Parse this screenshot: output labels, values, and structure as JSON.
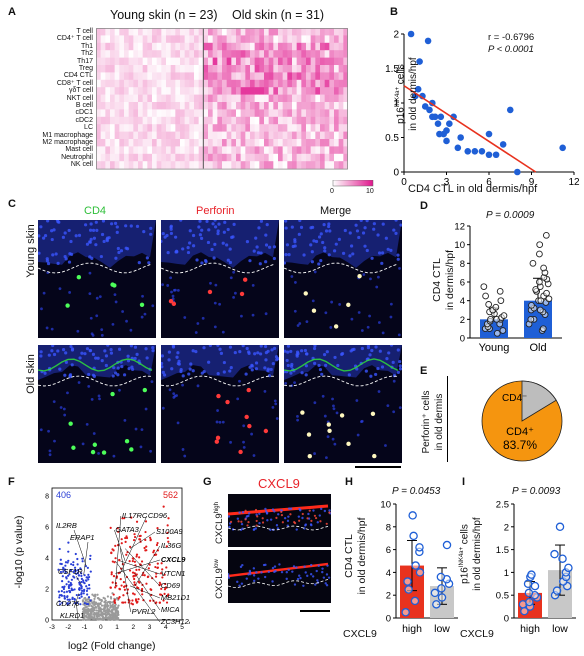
{
  "panels": {
    "A": "A",
    "B": "B",
    "C": "C",
    "D": "D",
    "E": "E",
    "F": "F",
    "G": "G",
    "H": "H",
    "I": "I"
  },
  "panel_a": {
    "young_title": "Young skin (n = 23)",
    "old_title": "Old skin (n = 31)",
    "rows": [
      "T cell",
      "CD4⁺ T cell",
      "Th1",
      "Th2",
      "Th17",
      "Treg",
      "CD4 CTL",
      "CD8⁺ T cell",
      "γδT cell",
      "NKT cell",
      "B cell",
      "cDC1",
      "cDC2",
      "LC",
      "M1 macrophage",
      "M2 macrophage",
      "Mast cell",
      "Neutrophil",
      "NK cell"
    ],
    "scale_min": "0",
    "scale_max": "10",
    "colors": {
      "low": "#ffffff",
      "high": "#e0158c"
    }
  },
  "panel_b": {
    "ylabel_prefix": "p16",
    "ylabel_sup": "INK4a+",
    "ylabel_suffix": " cells",
    "ylabel_line2": "in old dermis/hpf",
    "xlabel": "CD4 CTL in old dermis/hpf",
    "stat_r": "r = -0.6796",
    "stat_p": "P < 0.0001",
    "xticks": [
      "0",
      "3",
      "6",
      "9",
      "12"
    ],
    "yticks": [
      "0",
      "0.5",
      "1",
      "1.5",
      "2"
    ],
    "point_color": "#1f5fd6",
    "fit_color": "#e8321e"
  },
  "panel_c": {
    "cols": [
      "CD4",
      "Perforin",
      "Merge"
    ],
    "rows": [
      "Young skin",
      "Old skin"
    ],
    "col_colors": [
      "#2fbf3a",
      "#e8232a",
      "#111111"
    ]
  },
  "panel_d": {
    "p": "P = 0.0009",
    "ylabel": "CD4 CTL",
    "ylabel2": "in dermis/hpf",
    "yticks": [
      "0",
      "2",
      "4",
      "6",
      "8",
      "10",
      "12"
    ],
    "cats": [
      "Young",
      "Old"
    ],
    "bar_colors": [
      "#1f5fd6",
      "#1f5fd6"
    ]
  },
  "panel_e": {
    "ylabel": "Perforin⁺ cells",
    "ylabel2": "in old dermis",
    "slice_minor": "CD4⁻",
    "slice_major": "CD4⁺",
    "pct": "83.7%",
    "colors": {
      "major": "#f5950f",
      "minor": "#bdbdbd"
    }
  },
  "panel_f": {
    "n_down": "406",
    "n_up": "562",
    "ylabel": "-log10 (p value)",
    "xlabel": "log2 (Fold change)",
    "xticks": [
      "-3",
      "-2",
      "-1",
      "0",
      "1",
      "2",
      "3",
      "4",
      "5"
    ],
    "yticks": [
      "0",
      "2",
      "4",
      "6",
      "8"
    ],
    "genes_left": [
      "IL2RB",
      "ERAP1",
      "CSF1R",
      "CD276",
      "KLRD1"
    ],
    "genes_right": [
      "IL17RC",
      "CD96",
      "GATA3",
      "S100A9",
      "IL36G",
      "CXCL9",
      "VTCN1",
      "CD69",
      "MB21D1",
      "MICA",
      "ZC3H12A",
      "PVRL2"
    ],
    "colors": {
      "down": "#2a3fd6",
      "up": "#e01a1a",
      "ns": "#9a9a9a"
    }
  },
  "panel_g": {
    "title": "CXCL9",
    "row_high": "CXCL9",
    "row_high_sup": "high",
    "row_low": "CXCL9",
    "row_low_sup": "low",
    "title_color": "#e8232a"
  },
  "panel_h": {
    "p": "P = 0.0453",
    "ylabel": "CD4 CTL",
    "ylabel2": "in old dermis/hpf",
    "yticks": [
      "0",
      "2",
      "4",
      "6",
      "8",
      "10"
    ],
    "cxcl": "CXCL9",
    "cats": [
      "high",
      "low"
    ],
    "bar_colors": [
      "#e8321e",
      "#c8c8c8"
    ]
  },
  "panel_i": {
    "p": "P = 0.0093",
    "ylabel_prefix": "p16",
    "ylabel_sup": "INK4a+",
    "ylabel_suffix": " cells",
    "ylabel2": "in old dermis/hpf",
    "yticks": [
      "0",
      "0.5",
      "1",
      "1.5",
      "2",
      "2.5"
    ],
    "cxcl": "CXCL9",
    "cats": [
      "high",
      "low"
    ],
    "bar_colors": [
      "#e8321e",
      "#c8c8c8"
    ]
  },
  "chart_data": [
    {
      "id": "B",
      "type": "scatter",
      "xlabel": "CD4 CTL in old dermis/hpf",
      "ylabel": "p16INK4a+ cells in old dermis/hpf",
      "xlim": [
        0,
        12
      ],
      "ylim": [
        0,
        2
      ],
      "x": [
        0.5,
        0.8,
        1,
        1.1,
        1.3,
        1.5,
        1.7,
        1.8,
        2,
        2,
        2.2,
        2.4,
        2.5,
        2.6,
        2.8,
        3,
        3,
        3.2,
        3.5,
        3.8,
        4,
        4.5,
        5,
        5.5,
        6,
        6,
        6.5,
        7,
        7.5,
        8,
        11.2
      ],
      "y": [
        2.0,
        1.1,
        1.2,
        1.6,
        1.1,
        0.95,
        1.9,
        0.9,
        1.0,
        0.8,
        0.8,
        0.7,
        0.55,
        0.8,
        0.55,
        0.6,
        0.45,
        0.7,
        0.8,
        0.35,
        0.5,
        0.3,
        0.3,
        0.3,
        0.55,
        0.25,
        0.25,
        0.4,
        0.9,
        0.0,
        0.35
      ],
      "fit": {
        "x": [
          0,
          9.3
        ],
        "y": [
          1.25,
          0.0
        ]
      }
    },
    {
      "id": "D",
      "type": "bar",
      "categories": [
        "Young",
        "Old"
      ],
      "values": [
        2.0,
        4.0
      ],
      "errors": [
        1.2,
        2.4
      ],
      "ylim": [
        0,
        12
      ],
      "ylabel": "CD4 CTL in dermis/hpf",
      "points": [
        [
          0.5,
          0.8,
          1,
          1,
          1.2,
          1.5,
          1.5,
          1.8,
          2,
          2,
          2,
          2.2,
          2.4,
          2.6,
          2.8,
          3,
          3,
          3.3,
          3.6,
          4,
          4.5,
          5,
          5.5
        ],
        [
          0.8,
          1,
          1.5,
          2,
          2,
          2.5,
          2.8,
          3,
          3,
          3.2,
          3.5,
          3.8,
          4,
          4,
          4.2,
          4.5,
          4.8,
          5,
          5,
          5.2,
          5.5,
          5.8,
          6,
          6.3,
          6.5,
          7,
          7.5,
          8,
          9,
          10,
          11
        ]
      ]
    },
    {
      "id": "E",
      "type": "pie",
      "labels": [
        "CD4+",
        "CD4-"
      ],
      "values": [
        83.7,
        16.3
      ]
    },
    {
      "id": "F",
      "type": "scatter",
      "xlabel": "log2 (Fold change)",
      "ylabel": "-log10 (p value)",
      "xlim": [
        -3,
        5
      ],
      "ylim": [
        0,
        8.5
      ],
      "series": [
        {
          "name": "406",
          "count": 406
        },
        {
          "name": "562",
          "count": 562
        }
      ]
    },
    {
      "id": "H",
      "type": "bar",
      "categories": [
        "high",
        "low"
      ],
      "values": [
        4.6,
        2.8
      ],
      "errors": [
        2.2,
        1.6
      ],
      "ylim": [
        0,
        10
      ],
      "ylabel": "CD4 CTL in old dermis/hpf",
      "points": [
        [
          0.5,
          1.5,
          2.5,
          3.2,
          4.0,
          4.6,
          5.8,
          6.2,
          7.2,
          9.0
        ],
        [
          1.2,
          1.8,
          2.2,
          2.6,
          3.0,
          3.4,
          3.6,
          6.4
        ]
      ]
    },
    {
      "id": "I",
      "type": "bar",
      "categories": [
        "high",
        "low"
      ],
      "values": [
        0.55,
        1.05
      ],
      "errors": [
        0.25,
        0.55
      ],
      "ylim": [
        0,
        2.5
      ],
      "ylabel": "p16INK4a+ cells in old dermis/hpf",
      "points": [
        [
          0.15,
          0.25,
          0.3,
          0.35,
          0.45,
          0.5,
          0.55,
          0.7,
          0.75,
          0.9,
          0.95
        ],
        [
          0.5,
          0.6,
          0.7,
          0.8,
          0.9,
          1.0,
          1.1,
          1.3,
          1.4,
          2.0
        ]
      ]
    }
  ]
}
